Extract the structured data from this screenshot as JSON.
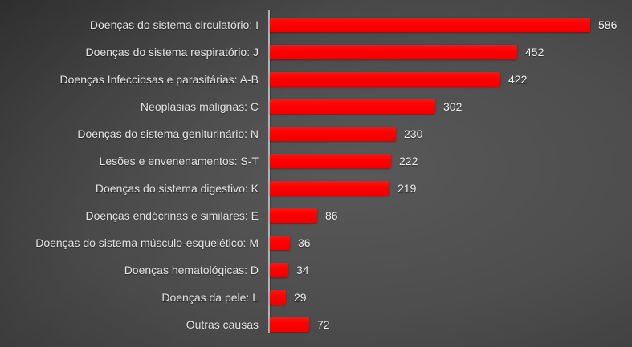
{
  "chart_data": {
    "type": "bar",
    "orientation": "horizontal",
    "title": "",
    "xlabel": "",
    "ylabel": "",
    "grid": false,
    "legend": false,
    "xlim": [
      0,
      600
    ],
    "categories": [
      "Doenças do sistema circulatório: I",
      "Doenças do sistema respiratório: J",
      "Doenças Infecciosas e parasitárias: A-B",
      "Neoplasias malignas: C",
      "Doenças do sistema geniturinário: N",
      "Lesões e envenenamentos: S-T",
      "Doenças do sistema digestivo: K",
      "Doenças endócrinas e similares: E",
      "Doenças do sistema músculo-esquelético: M",
      "Doenças hematológicas: D",
      "Doenças da pele: L",
      "Outras causas"
    ],
    "values": [
      586,
      452,
      422,
      302,
      230,
      222,
      219,
      86,
      36,
      34,
      29,
      72
    ],
    "data_labels_visible": true,
    "colors": {
      "bar": "#ff0000",
      "category_text": "#e4e4e4",
      "value_text": "#efefef",
      "axis_line": "#b3b3b3",
      "background_center": "#595959",
      "background_edge": "#282828"
    }
  }
}
